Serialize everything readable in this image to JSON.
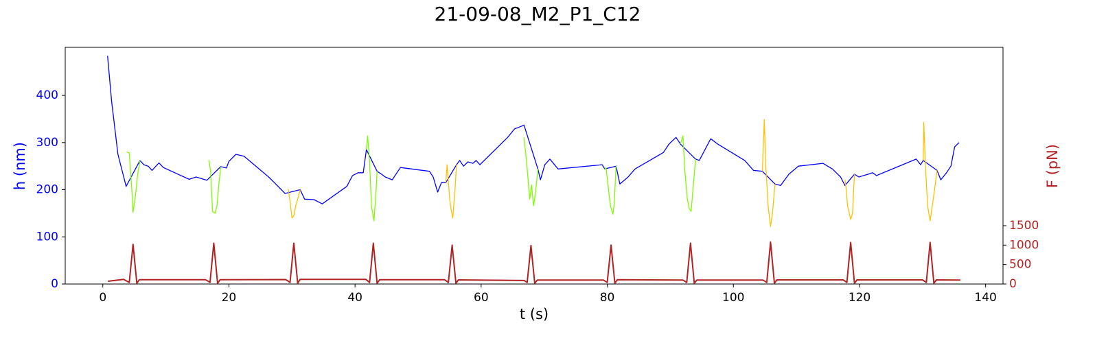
{
  "chart_data": {
    "type": "line",
    "title": "21-09-08_M2_P1_C12",
    "xlabel": "t (s)",
    "ylabel": "h (nm)",
    "y2label": "F (pN)",
    "y_color": "#0000ff",
    "y2_color": "#b22222",
    "xlim": [
      -5.96,
      142.76
    ],
    "ylim": [
      0,
      502
    ],
    "y2lim": [
      0,
      6088
    ],
    "xticks": [
      0,
      20,
      40,
      60,
      80,
      100,
      120,
      140
    ],
    "yticks": [
      0,
      100,
      200,
      300,
      400
    ],
    "y2ticks": [
      0,
      500,
      1000,
      1500
    ],
    "series": [
      {
        "color": "#0000ff",
        "x": [
          0.76,
          1.4,
          2.4,
          3.7,
          5.9,
          6.5,
          7.2,
          7.8,
          8.9,
          9.6,
          13.7,
          14.8,
          16.5,
          18.7,
          19.6,
          20.0,
          21.1,
          22.4,
          26.3,
          27.2,
          28.9,
          31.3,
          32.0,
          33.5,
          34.8,
          38.7,
          39.6,
          40.5,
          41.3,
          41.8,
          43.5,
          44.2,
          44.8,
          45.9,
          47.2,
          51.8,
          52.4,
          53.1,
          53.7,
          54.4,
          56.1,
          56.6,
          57.2,
          57.9,
          58.7,
          59.2,
          59.8,
          64.2,
          65.3,
          65.9,
          66.8,
          69.0,
          69.4,
          70.1,
          70.9,
          72.2,
          79.2,
          79.6,
          81.4,
          82.0,
          83.3,
          84.4,
          88.9,
          89.8,
          90.9,
          91.6,
          94.0,
          94.6,
          96.4,
          97.5,
          101.8,
          103.2,
          104.6,
          106.6,
          107.5,
          108.8,
          110.3,
          114.2,
          115.7,
          117.0,
          117.7,
          119.2,
          119.9,
          121.4,
          122.1,
          122.7,
          129.0,
          129.7,
          130.1,
          132.3,
          132.9,
          133.8,
          134.5,
          135.1,
          135.8
        ],
        "values": [
          484,
          387,
          275,
          207,
          262,
          253,
          250,
          241,
          257,
          247,
          222,
          227,
          220,
          249,
          246,
          260,
          275,
          271,
          227,
          215,
          192,
          200,
          180,
          179,
          170,
          207,
          230,
          236,
          236,
          285,
          239,
          233,
          227,
          221,
          247,
          239,
          227,
          195,
          215,
          215,
          253,
          262,
          250,
          259,
          256,
          262,
          253,
          311,
          329,
          332,
          337,
          244,
          221,
          253,
          265,
          244,
          253,
          244,
          250,
          212,
          227,
          244,
          279,
          297,
          311,
          297,
          265,
          262,
          308,
          297,
          262,
          241,
          239,
          212,
          209,
          233,
          250,
          256,
          244,
          227,
          209,
          233,
          227,
          233,
          236,
          230,
          265,
          253,
          262,
          241,
          221,
          236,
          250,
          291,
          300
        ]
      },
      {
        "color": "#7cfc00",
        "x": [
          3.8,
          4.2,
          4.6,
          4.8,
          5.2,
          5.5,
          5.9
        ],
        "values": [
          280,
          278,
          200,
          152,
          190,
          230,
          262
        ]
      },
      {
        "color": "#7cfc00",
        "x": [
          16.8,
          17.1,
          17.4,
          17.8,
          18.1,
          18.4,
          18.7
        ],
        "values": [
          263,
          240,
          154,
          150,
          166,
          210,
          249
        ]
      },
      {
        "color": "#ffc000",
        "x": [
          29.4,
          29.7,
          30.0,
          30.3,
          30.6,
          31.0,
          31.3
        ],
        "values": [
          202,
          175,
          140,
          145,
          166,
          185,
          200
        ]
      },
      {
        "color": "#7cfc00",
        "x": [
          41.8,
          42.0,
          42.3,
          42.6,
          43.0,
          43.3,
          43.5
        ],
        "values": [
          285,
          314,
          260,
          166,
          134,
          190,
          239
        ]
      },
      {
        "color": "#ffc000",
        "x": [
          54.4,
          54.6,
          55.0,
          55.2,
          55.5,
          55.8,
          56.1
        ],
        "values": [
          215,
          253,
          183,
          160,
          140,
          190,
          253
        ]
      },
      {
        "color": "#7cfc00",
        "x": [
          66.8,
          67.2,
          67.7,
          68.0,
          68.3,
          68.6,
          69.0
        ],
        "values": [
          311,
          260,
          180,
          210,
          166,
          190,
          244
        ]
      },
      {
        "color": "#7cfc00",
        "x": [
          79.6,
          79.8,
          80.2,
          80.5,
          80.9,
          81.1,
          81.4
        ],
        "values": [
          244,
          247,
          200,
          166,
          148,
          170,
          250
        ]
      },
      {
        "color": "#7cfc00",
        "x": [
          91.6,
          92.0,
          92.3,
          92.7,
          93.0,
          93.3,
          94.0
        ],
        "values": [
          297,
          314,
          240,
          180,
          160,
          154,
          265
        ]
      },
      {
        "color": "#ffc000",
        "x": [
          104.6,
          104.9,
          105.1,
          105.5,
          105.9,
          106.2,
          106.6
        ],
        "values": [
          239,
          349,
          260,
          166,
          122,
          150,
          212
        ]
      },
      {
        "color": "#ffc000",
        "x": [
          117.7,
          117.9,
          118.1,
          118.6,
          118.9,
          119.2
        ],
        "values": [
          221,
          200,
          166,
          137,
          150,
          233
        ]
      },
      {
        "color": "#ffc000",
        "x": [
          130.1,
          130.2,
          130.5,
          130.8,
          131.2,
          131.7,
          132.3
        ],
        "values": [
          262,
          343,
          240,
          166,
          134,
          180,
          241
        ]
      },
      {
        "color": "#b22222",
        "axis": "y2",
        "x": [
          0.8,
          3.3,
          4.2,
          4.8,
          5.4,
          5.8,
          16.3,
          17.0,
          17.6,
          18.2,
          18.6,
          29.0,
          29.7,
          30.3,
          30.9,
          31.3,
          41.7,
          42.3,
          42.9,
          43.5,
          43.9,
          54.2,
          54.8,
          55.4,
          56.0,
          56.4,
          66.8,
          67.3,
          67.9,
          68.5,
          68.9,
          79.4,
          80.0,
          80.6,
          81.2,
          81.6,
          92.0,
          92.6,
          93.2,
          93.8,
          94.2,
          104.7,
          105.3,
          105.9,
          106.5,
          106.9,
          117.4,
          118.0,
          118.6,
          119.2,
          119.6,
          130.0,
          130.6,
          131.2,
          131.8,
          132.2,
          136.0
        ],
        "values": [
          70,
          120,
          40,
          1020,
          20,
          110,
          110,
          40,
          1050,
          20,
          110,
          115,
          40,
          1050,
          20,
          120,
          120,
          40,
          1050,
          20,
          110,
          110,
          40,
          1000,
          20,
          105,
          90,
          40,
          990,
          20,
          100,
          100,
          40,
          1000,
          20,
          110,
          100,
          40,
          1050,
          20,
          100,
          100,
          40,
          1080,
          20,
          105,
          105,
          40,
          1070,
          20,
          105,
          105,
          40,
          1070,
          20,
          105,
          100
        ]
      }
    ]
  }
}
